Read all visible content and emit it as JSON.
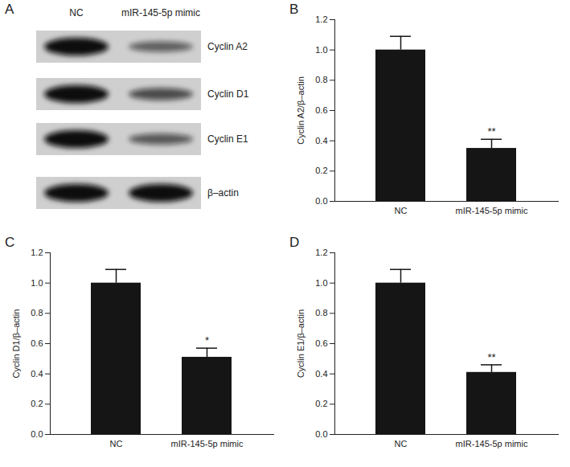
{
  "blot": {
    "panel": "A",
    "lanes": [
      "NC",
      "mIR-145-5p mimic"
    ],
    "bands": [
      "Cyclin A2",
      "Cyclin D1",
      "Cyclin E1",
      "β–actin"
    ]
  },
  "chart_data": [
    {
      "type": "bar",
      "panel": "B",
      "categories": [
        "NC",
        "mIR-145-5p mimic"
      ],
      "values": [
        1.0,
        0.35
      ],
      "errors": [
        0.09,
        0.06
      ],
      "color": "#151515",
      "ylabel": "Cyclin A2/β–actin",
      "ylim": [
        0,
        1.2
      ],
      "yticks": [
        {
          "value": 0,
          "label": "0.0"
        },
        {
          "value": 0.2,
          "label": "0.2"
        },
        {
          "value": 0.4,
          "label": "0.4"
        },
        {
          "value": 0.6,
          "label": "0.6"
        },
        {
          "value": 0.8,
          "label": "0.8"
        },
        {
          "value": 1.0,
          "label": "1.0"
        },
        {
          "value": 1.2,
          "label": "1.2"
        }
      ],
      "grid": false,
      "annotations": [
        {
          "category": "mIR-145-5p mimic",
          "text": "**"
        }
      ]
    },
    {
      "type": "bar",
      "panel": "C",
      "categories": [
        "NC",
        "mIR-145-5p mimic"
      ],
      "values": [
        1.0,
        0.51
      ],
      "errors": [
        0.09,
        0.06
      ],
      "color": "#151515",
      "ylabel": "Cyclin D1/β–actin",
      "ylim": [
        0,
        1.2
      ],
      "yticks": [
        {
          "value": 0,
          "label": "0.0"
        },
        {
          "value": 0.2,
          "label": "0.2"
        },
        {
          "value": 0.4,
          "label": "0.4"
        },
        {
          "value": 0.6,
          "label": "0.6"
        },
        {
          "value": 0.8,
          "label": "0.8"
        },
        {
          "value": 1.0,
          "label": "1.0"
        },
        {
          "value": 1.2,
          "label": "1.2"
        }
      ],
      "grid": false,
      "annotations": [
        {
          "category": "mIR-145-5p mimic",
          "text": "*"
        }
      ]
    },
    {
      "type": "bar",
      "panel": "D",
      "categories": [
        "NC",
        "mIR-145-5p mimic"
      ],
      "values": [
        1.0,
        0.41
      ],
      "errors": [
        0.09,
        0.05
      ],
      "color": "#151515",
      "ylabel": "Cyclin E1/β–actin",
      "ylim": [
        0,
        1.2
      ],
      "yticks": [
        {
          "value": 0,
          "label": "0.0"
        },
        {
          "value": 0.2,
          "label": "0.2"
        },
        {
          "value": 0.4,
          "label": "0.4"
        },
        {
          "value": 0.6,
          "label": "0.6"
        },
        {
          "value": 0.8,
          "label": "0.8"
        },
        {
          "value": 1.0,
          "label": "1.0"
        },
        {
          "value": 1.2,
          "label": "1.2"
        }
      ],
      "grid": false,
      "annotations": [
        {
          "category": "mIR-145-5p mimic",
          "text": "**"
        }
      ]
    }
  ]
}
